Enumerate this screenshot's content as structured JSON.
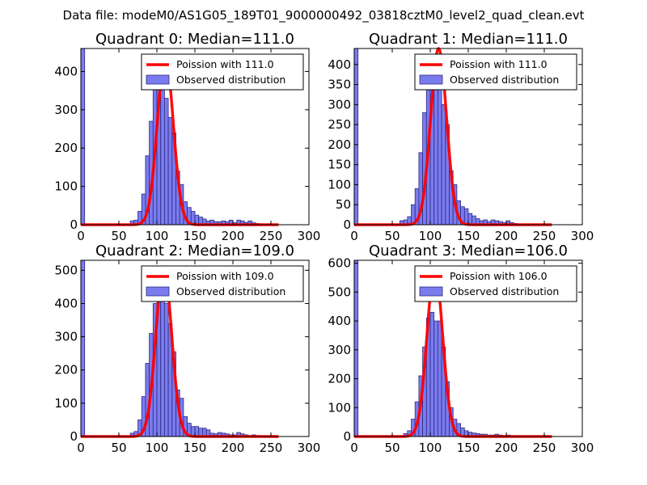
{
  "suptitle": "Data file: modeM0/AS1G05_189T01_9000000492_03818cztM0_level2_quad_clean.evt",
  "chart_data": [
    {
      "type": "bar",
      "title": "Quadrant 0: Median=111.0",
      "xlim": [
        0,
        300
      ],
      "ylim": [
        0,
        460
      ],
      "xticks": [
        0,
        50,
        100,
        150,
        200,
        250,
        300
      ],
      "yticks": [
        0,
        100,
        200,
        300,
        400
      ],
      "bin_width": 5,
      "legend": [
        "Poission with 111.0",
        "Observed distribution"
      ],
      "legend_loc": "upper right",
      "median": 111.0,
      "pdf_peak": 440,
      "pdf_sigma": 10.5,
      "bins": [
        [
          0,
          460
        ],
        [
          65,
          10
        ],
        [
          70,
          12
        ],
        [
          75,
          35
        ],
        [
          80,
          80
        ],
        [
          85,
          180
        ],
        [
          90,
          270
        ],
        [
          95,
          360
        ],
        [
          100,
          410
        ],
        [
          105,
          410
        ],
        [
          110,
          330
        ],
        [
          115,
          280
        ],
        [
          120,
          240
        ],
        [
          125,
          140
        ],
        [
          130,
          105
        ],
        [
          135,
          60
        ],
        [
          140,
          45
        ],
        [
          145,
          35
        ],
        [
          150,
          25
        ],
        [
          155,
          20
        ],
        [
          160,
          15
        ],
        [
          165,
          10
        ],
        [
          170,
          12
        ],
        [
          175,
          8
        ],
        [
          180,
          8
        ],
        [
          185,
          10
        ],
        [
          190,
          8
        ],
        [
          195,
          12
        ],
        [
          200,
          5
        ],
        [
          205,
          12
        ],
        [
          210,
          10
        ],
        [
          215,
          6
        ],
        [
          220,
          10
        ],
        [
          225,
          5
        ],
        [
          230,
          3
        ]
      ]
    },
    {
      "type": "bar",
      "title": "Quadrant 1: Median=111.0",
      "xlim": [
        0,
        300
      ],
      "ylim": [
        0,
        440
      ],
      "xticks": [
        0,
        50,
        100,
        150,
        200,
        250,
        300
      ],
      "yticks": [
        0,
        50,
        100,
        150,
        200,
        250,
        300,
        350,
        400
      ],
      "bin_width": 5,
      "legend": [
        "Poission with 111.0",
        "Observed distribution"
      ],
      "legend_loc": "upper right",
      "median": 111.0,
      "pdf_peak": 440,
      "pdf_sigma": 10.5,
      "bins": [
        [
          0,
          440
        ],
        [
          60,
          10
        ],
        [
          65,
          12
        ],
        [
          70,
          20
        ],
        [
          75,
          50
        ],
        [
          80,
          90
        ],
        [
          85,
          180
        ],
        [
          90,
          280
        ],
        [
          95,
          360
        ],
        [
          100,
          420
        ],
        [
          105,
          405
        ],
        [
          110,
          350
        ],
        [
          115,
          300
        ],
        [
          120,
          250
        ],
        [
          125,
          135
        ],
        [
          130,
          100
        ],
        [
          135,
          60
        ],
        [
          140,
          45
        ],
        [
          145,
          40
        ],
        [
          150,
          28
        ],
        [
          155,
          22
        ],
        [
          160,
          15
        ],
        [
          165,
          10
        ],
        [
          170,
          12
        ],
        [
          175,
          8
        ],
        [
          180,
          12
        ],
        [
          185,
          10
        ],
        [
          190,
          8
        ],
        [
          195,
          5
        ],
        [
          200,
          10
        ],
        [
          205,
          5
        ],
        [
          210,
          3
        ]
      ]
    },
    {
      "type": "bar",
      "title": "Quadrant 2: Median=109.0",
      "xlim": [
        0,
        300
      ],
      "ylim": [
        0,
        530
      ],
      "xticks": [
        0,
        50,
        100,
        150,
        200,
        250,
        300
      ],
      "yticks": [
        0,
        100,
        200,
        300,
        400,
        500
      ],
      "bin_width": 5,
      "legend": [
        "Poission with 109.0",
        "Observed distribution"
      ],
      "legend_loc": "upper right",
      "median": 109.0,
      "pdf_peak": 510,
      "pdf_sigma": 10.4,
      "bins": [
        [
          0,
          530
        ],
        [
          65,
          10
        ],
        [
          70,
          15
        ],
        [
          75,
          50
        ],
        [
          80,
          120
        ],
        [
          85,
          220
        ],
        [
          90,
          310
        ],
        [
          95,
          400
        ],
        [
          100,
          450
        ],
        [
          105,
          440
        ],
        [
          110,
          400
        ],
        [
          115,
          340
        ],
        [
          120,
          255
        ],
        [
          125,
          140
        ],
        [
          130,
          115
        ],
        [
          135,
          60
        ],
        [
          140,
          40
        ],
        [
          145,
          30
        ],
        [
          150,
          30
        ],
        [
          155,
          25
        ],
        [
          160,
          25
        ],
        [
          165,
          20
        ],
        [
          170,
          10
        ],
        [
          175,
          8
        ],
        [
          180,
          12
        ],
        [
          185,
          10
        ],
        [
          190,
          8
        ],
        [
          195,
          5
        ],
        [
          200,
          5
        ],
        [
          205,
          12
        ],
        [
          210,
          8
        ],
        [
          215,
          5
        ],
        [
          220,
          3
        ],
        [
          225,
          5
        ],
        [
          230,
          3
        ]
      ]
    },
    {
      "type": "bar",
      "title": "Quadrant 3: Median=106.0",
      "xlim": [
        0,
        300
      ],
      "ylim": [
        0,
        610
      ],
      "xticks": [
        0,
        50,
        100,
        150,
        200,
        250,
        300
      ],
      "yticks": [
        0,
        100,
        200,
        300,
        400,
        500,
        600
      ],
      "bin_width": 5,
      "legend": [
        "Poission with 106.0",
        "Observed distribution"
      ],
      "legend_loc": "upper right",
      "median": 106.0,
      "pdf_peak": 580,
      "pdf_sigma": 10.3,
      "bins": [
        [
          0,
          610
        ],
        [
          65,
          10
        ],
        [
          70,
          20
        ],
        [
          75,
          60
        ],
        [
          80,
          120
        ],
        [
          85,
          210
        ],
        [
          90,
          310
        ],
        [
          95,
          410
        ],
        [
          100,
          430
        ],
        [
          105,
          400
        ],
        [
          110,
          400
        ],
        [
          115,
          310
        ],
        [
          120,
          190
        ],
        [
          125,
          100
        ],
        [
          130,
          60
        ],
        [
          135,
          45
        ],
        [
          140,
          30
        ],
        [
          145,
          20
        ],
        [
          150,
          15
        ],
        [
          155,
          12
        ],
        [
          160,
          10
        ],
        [
          165,
          8
        ],
        [
          170,
          8
        ],
        [
          175,
          5
        ],
        [
          180,
          5
        ],
        [
          185,
          8
        ],
        [
          190,
          5
        ],
        [
          195,
          3
        ],
        [
          200,
          5
        ],
        [
          205,
          3
        ]
      ]
    }
  ]
}
